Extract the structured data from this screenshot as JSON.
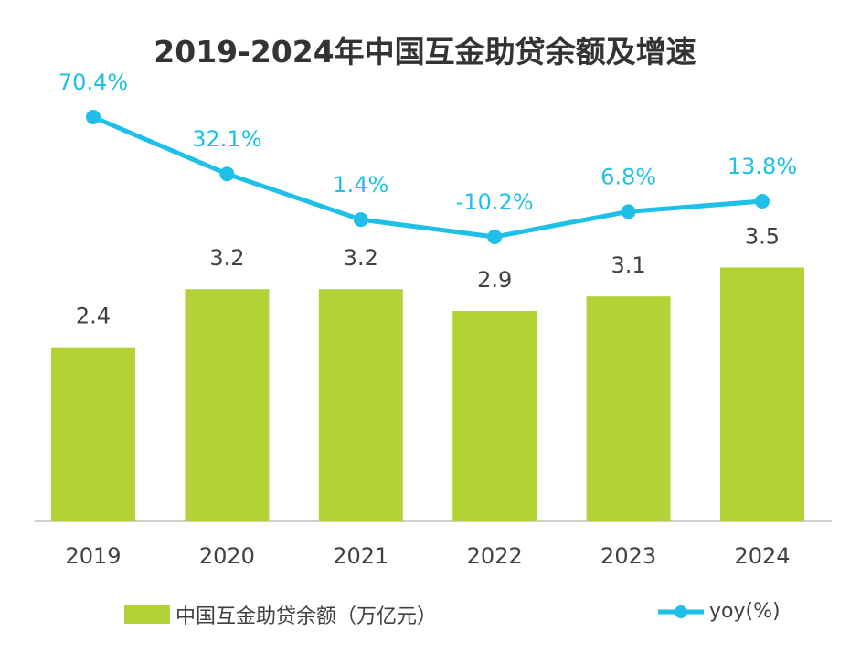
{
  "chart_data": {
    "type": "bar+line",
    "title": "2019-2024年中国互金助贷余额及增速",
    "categories": [
      "2019",
      "2020",
      "2021",
      "2022",
      "2023",
      "2024"
    ],
    "series": [
      {
        "name": "中国互金助贷余额（万亿元）",
        "type": "bar",
        "values": [
          2.4,
          3.2,
          3.2,
          2.9,
          3.1,
          3.5
        ],
        "labels": [
          "2.4",
          "3.2",
          "3.2",
          "2.9",
          "3.1",
          "3.5"
        ],
        "color": "#b2d235"
      },
      {
        "name": "yoy(%)",
        "type": "line",
        "values": [
          70.4,
          32.1,
          1.4,
          -10.2,
          6.8,
          13.8
        ],
        "labels": [
          "70.4%",
          "32.1%",
          "1.4%",
          "-10.2%",
          "6.8%",
          "13.8%"
        ],
        "color": "#1ec0e8"
      }
    ],
    "grid": false,
    "legend": "bottom"
  }
}
